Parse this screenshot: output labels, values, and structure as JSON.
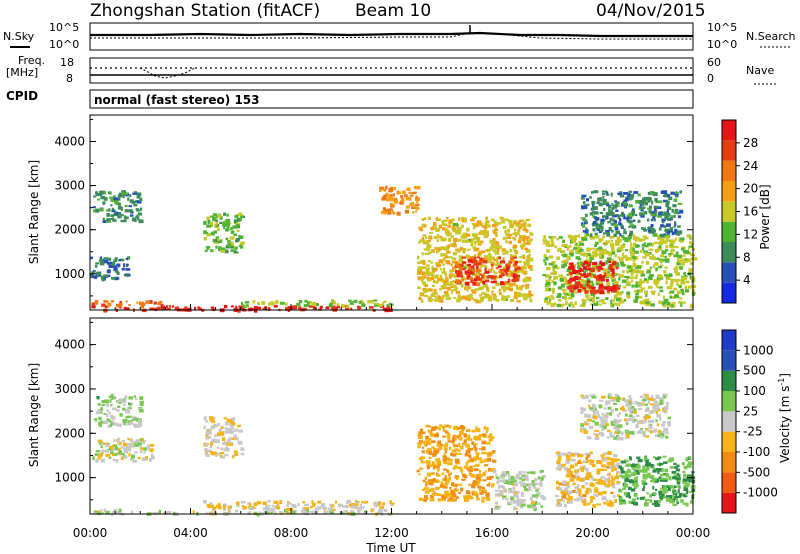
{
  "header": {
    "station": "Zhongshan Station (fitACF)",
    "beam": "Beam 10",
    "date": "04/Nov/2015"
  },
  "noise_panel": {
    "left_label": "N.Sky",
    "right_label": "N.Search",
    "left_ticks": [
      "10^5",
      "10^0"
    ],
    "right_ticks": [
      "10^5",
      "10^0"
    ]
  },
  "freq_panel": {
    "left_label_1": "Freq.",
    "left_label_2": "[MHz]",
    "right_label": "Nave",
    "left_ticks": [
      "18",
      "8"
    ],
    "right_ticks": [
      "60",
      "0"
    ]
  },
  "cpid": {
    "label": "CPID",
    "value": "normal (fast stereo) 153"
  },
  "colors": {
    "power": [
      "#1428e6",
      "#2850b4",
      "#3c8c5a",
      "#50b432",
      "#c8c828",
      "#f5a014",
      "#f07814",
      "#e63c14",
      "#e61414"
    ],
    "velocity": [
      "#e61414",
      "#f05a14",
      "#f08c14",
      "#f5b414",
      "#c8c8c8",
      "#78c850",
      "#2d8c46",
      "#2850b4",
      "#1e3cc8"
    ]
  },
  "chart_data": [
    {
      "type": "heatmap",
      "ylabel": "Slant Range [km]",
      "xlabel": "Time UT",
      "xticks": [
        "00:00",
        "04:00",
        "08:00",
        "12:00",
        "16:00",
        "20:00",
        "00:00"
      ],
      "yticks": [
        "1000",
        "2000",
        "3000",
        "4000"
      ],
      "x_range_hours": [
        0,
        24
      ],
      "ylim": [
        180,
        4600
      ],
      "colorbar": {
        "label": "Power [dB]",
        "ticks": [
          "28",
          "24",
          "20",
          "16",
          "12",
          "8",
          "4"
        ],
        "range": [
          0,
          30
        ]
      },
      "regions": [
        {
          "t": [
            0.0,
            12.0
          ],
          "r": [
            200,
            300
          ],
          "value": 27
        },
        {
          "t": [
            6.0,
            12.0
          ],
          "r": [
            300,
            420
          ],
          "value": 13
        },
        {
          "t": [
            0.0,
            3.0
          ],
          "r": [
            300,
            420
          ],
          "value": 22
        },
        {
          "t": [
            0.1,
            2.0
          ],
          "r": [
            2200,
            2900
          ],
          "value": 8
        },
        {
          "t": [
            0.0,
            1.5
          ],
          "r": [
            900,
            1400
          ],
          "value": 7
        },
        {
          "t": [
            4.5,
            6.0
          ],
          "r": [
            1500,
            2400
          ],
          "value": 12
        },
        {
          "t": [
            13.0,
            17.5
          ],
          "r": [
            400,
            2300
          ],
          "value": 16
        },
        {
          "t": [
            14.5,
            17.0
          ],
          "r": [
            800,
            1400
          ],
          "value": 25
        },
        {
          "t": [
            18.0,
            24.0
          ],
          "r": [
            300,
            1900
          ],
          "value": 14
        },
        {
          "t": [
            19.0,
            21.0
          ],
          "r": [
            600,
            1300
          ],
          "value": 27
        },
        {
          "t": [
            19.5,
            23.5
          ],
          "r": [
            1900,
            2900
          ],
          "value": 8
        },
        {
          "t": [
            11.5,
            13.0
          ],
          "r": [
            2400,
            3000
          ],
          "value": 20
        }
      ]
    },
    {
      "type": "heatmap",
      "ylabel": "Slant Range [km]",
      "xlabel": "Time UT",
      "xticks": [
        "00:00",
        "04:00",
        "08:00",
        "12:00",
        "16:00",
        "20:00",
        "00:00"
      ],
      "yticks": [
        "1000",
        "2000",
        "3000",
        "4000"
      ],
      "x_range_hours": [
        0,
        24
      ],
      "ylim": [
        180,
        4600
      ],
      "colorbar": {
        "label": "Velocity [m s",
        "label_sup": "-1",
        "label_end": "]",
        "ticks": [
          "1000",
          "500",
          "100",
          "25",
          "-25",
          "-100",
          "-500",
          "-1000"
        ],
        "range": [
          -1200,
          1200
        ]
      },
      "regions": [
        {
          "t": [
            0.0,
            12.0
          ],
          "r": [
            200,
            300
          ],
          "value": 60
        },
        {
          "t": [
            4.5,
            12.0
          ],
          "r": [
            300,
            500
          ],
          "value": -150
        },
        {
          "t": [
            0.1,
            2.0
          ],
          "r": [
            2200,
            2900
          ],
          "value": 200
        },
        {
          "t": [
            0.0,
            2.5
          ],
          "r": [
            1400,
            1900
          ],
          "value": 0
        },
        {
          "t": [
            4.5,
            6.0
          ],
          "r": [
            1500,
            2400
          ],
          "value": -80
        },
        {
          "t": [
            13.0,
            16.0
          ],
          "r": [
            500,
            2200
          ],
          "value": -350
        },
        {
          "t": [
            16.0,
            18.0
          ],
          "r": [
            300,
            1200
          ],
          "value": 60
        },
        {
          "t": [
            18.5,
            21.0
          ],
          "r": [
            400,
            1600
          ],
          "value": -200
        },
        {
          "t": [
            21.0,
            24.0
          ],
          "r": [
            400,
            1500
          ],
          "value": 400
        },
        {
          "t": [
            19.5,
            23.0
          ],
          "r": [
            1900,
            2900
          ],
          "value": 0
        }
      ]
    }
  ]
}
